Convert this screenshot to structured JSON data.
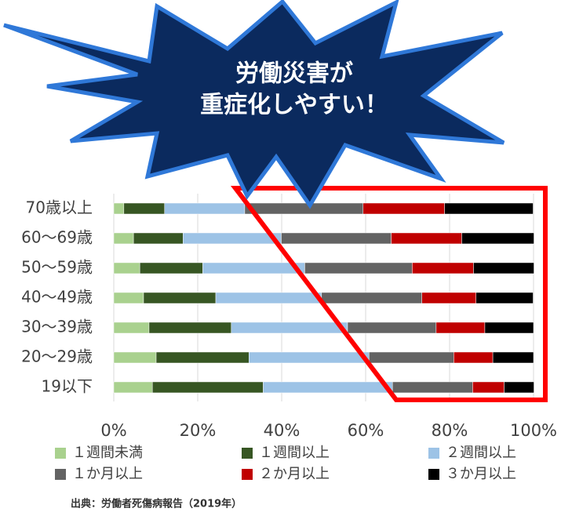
{
  "chart_data": {
    "type": "stacked-bar-horizontal",
    "categories": [
      "70歳以上",
      "60～69歳",
      "50～59歳",
      "40～49歳",
      "30～39歳",
      "20～29歳",
      "19以下"
    ],
    "series": [
      {
        "name": "１週間未満",
        "color": "#a9d18e",
        "values": [
          2.4,
          4.7,
          6.2,
          7.1,
          8.4,
          10.1,
          9.2
        ]
      },
      {
        "name": "１週間以上",
        "color": "#375623",
        "values": [
          9.7,
          11.8,
          15.0,
          17.2,
          19.6,
          22.1,
          26.4
        ]
      },
      {
        "name": "２週間以上",
        "color": "#9dc3e6",
        "values": [
          19.1,
          23.4,
          24.3,
          25.2,
          27.7,
          28.6,
          30.8
        ]
      },
      {
        "name": "１か月以上",
        "color": "#636363",
        "values": [
          28.2,
          26.2,
          25.6,
          23.9,
          21.1,
          20.2,
          19.1
        ]
      },
      {
        "name": "２か月以上",
        "color": "#c00000",
        "values": [
          19.4,
          16.8,
          14.6,
          12.9,
          11.6,
          9.3,
          7.5
        ]
      },
      {
        "name": "３か月以上",
        "color": "#000000",
        "values": [
          21.1,
          17.2,
          14.4,
          13.6,
          11.6,
          9.7,
          7.1
        ]
      }
    ],
    "xlim": [
      0,
      100
    ],
    "xticks": [
      {
        "value": 0,
        "label": "0%"
      },
      {
        "value": 20,
        "label": "20%"
      },
      {
        "value": 40,
        "label": "40%"
      },
      {
        "value": 60,
        "label": "60%"
      },
      {
        "value": 80,
        "label": "80%"
      },
      {
        "value": 100,
        "label": "100%"
      }
    ],
    "grid": true
  },
  "callout": [
    "労働災害が",
    "重症化しやすい！"
  ],
  "source": "出典：労働者死傷病報告（2019年）"
}
